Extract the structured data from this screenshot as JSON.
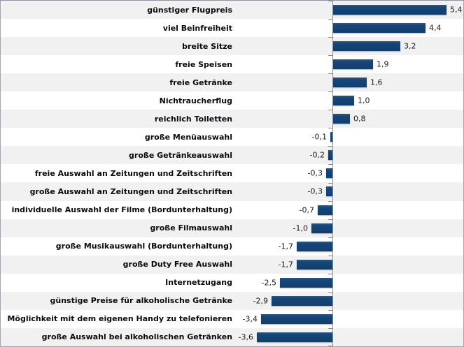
{
  "chart_data": {
    "type": "bar",
    "orientation": "horizontal",
    "title": "",
    "xlabel": "",
    "ylabel": "",
    "grid": false,
    "legend": false,
    "xlim": [
      -4.8,
      6.2
    ],
    "decimal_separator": ",",
    "categories": [
      "günstiger Flugpreis",
      "viel Beinfreiheit",
      "breite Sitze",
      "freie Speisen",
      "freie Getränke",
      "Nichtraucherflug",
      "reichlich Toiletten",
      "große Menüauswahl",
      "große Getränkeauswahl",
      "freie Auswahl an Zeitungen und Zeitschriften",
      "große Auswahl an Zeitungen und Zeitschriften",
      "individuelle Auswahl der Filme (Bordunterhaltung)",
      "große Filmauswahl",
      "große Musikauswahl (Bordunterhaltung)",
      "große Duty Free Auswahl",
      "Internetzugang",
      "günstige Preise für alkoholische Getränke",
      "Möglichkeit mit dem eigenen Handy zu telefonieren",
      "große Auswahl bei alkoholischen Getränken"
    ],
    "values": [
      5.4,
      4.4,
      3.2,
      1.9,
      1.6,
      1.0,
      0.8,
      -0.1,
      -0.2,
      -0.3,
      -0.3,
      -0.7,
      -1.0,
      -1.7,
      -1.7,
      -2.5,
      -2.9,
      -3.4,
      -3.6
    ],
    "value_labels": [
      "5,4",
      "4,4",
      "3,2",
      "1,9",
      "1,6",
      "1,0",
      "0,8",
      "-0,1",
      "-0,2",
      "-0,3",
      "-0,3",
      "-0,7",
      "-1,0",
      "-1,7",
      "-1,7",
      "-2,5",
      "-2,9",
      "-3,4",
      "-3,6"
    ],
    "colors": {
      "bar": "#123f6d",
      "row_stripe": "#f1f1f2",
      "row_plain": "#ffffff",
      "axis": "#8c8c8c",
      "label_text": "#0a0a0f",
      "value_text": "#1c1c1c",
      "border": "#a3a3ab"
    }
  }
}
